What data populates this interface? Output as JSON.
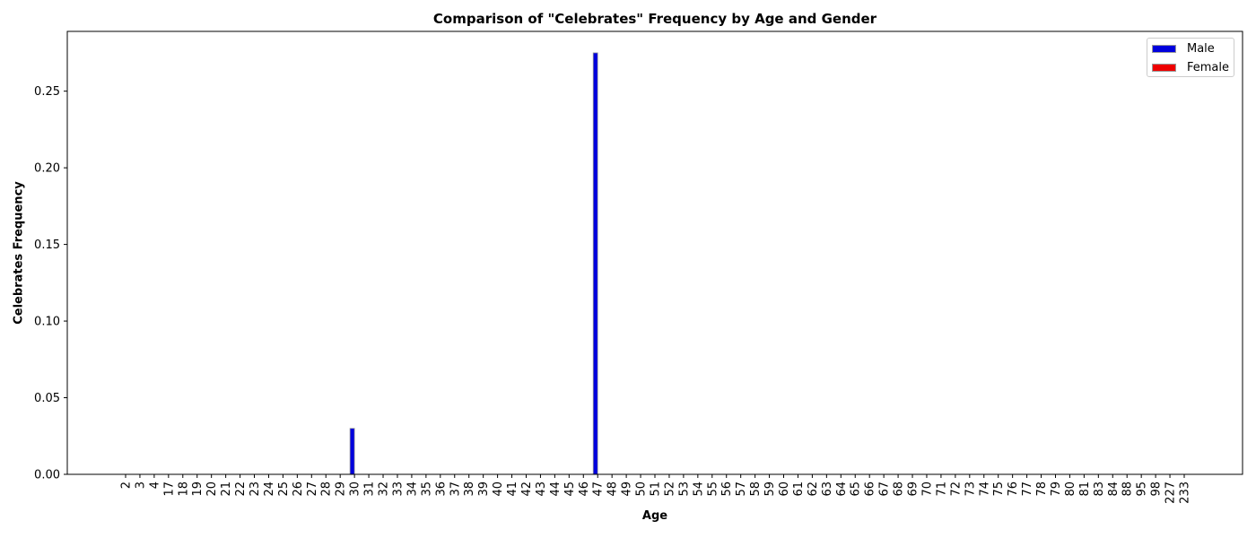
{
  "chart_data": {
    "type": "bar",
    "title": "Comparison of \"Celebrates\" Frequency by Age and Gender",
    "xlabel": "Age",
    "ylabel": "Celebrates Frequency",
    "ylim": [
      0,
      0.289
    ],
    "yticks": [
      0.0,
      0.05,
      0.1,
      0.15,
      0.2,
      0.25
    ],
    "ytick_labels": [
      "0.00",
      "0.05",
      "0.10",
      "0.15",
      "0.20",
      "0.25"
    ],
    "grid": false,
    "legend_position": "top-right",
    "categories": [
      "2",
      "3",
      "4",
      "17",
      "18",
      "19",
      "20",
      "21",
      "22",
      "23",
      "24",
      "25",
      "26",
      "27",
      "28",
      "29",
      "30",
      "31",
      "32",
      "33",
      "34",
      "35",
      "36",
      "37",
      "38",
      "39",
      "40",
      "41",
      "42",
      "43",
      "44",
      "45",
      "46",
      "47",
      "48",
      "49",
      "50",
      "51",
      "52",
      "53",
      "54",
      "55",
      "56",
      "57",
      "58",
      "59",
      "60",
      "61",
      "62",
      "63",
      "64",
      "65",
      "66",
      "67",
      "68",
      "69",
      "70",
      "71",
      "72",
      "73",
      "74",
      "75",
      "76",
      "77",
      "78",
      "79",
      "80",
      "81",
      "83",
      "84",
      "88",
      "95",
      "98",
      "227",
      "233"
    ],
    "series": [
      {
        "name": "Male",
        "color": "#0000dd",
        "values": [
          0,
          0,
          0,
          0,
          0,
          0,
          0,
          0,
          0,
          0,
          0,
          0,
          0,
          0,
          0,
          0,
          0.03,
          0,
          0,
          0,
          0,
          0,
          0,
          0,
          0,
          0,
          0,
          0,
          0,
          0,
          0,
          0,
          0,
          0.275,
          0,
          0,
          0,
          0,
          0,
          0,
          0,
          0,
          0,
          0,
          0,
          0,
          0,
          0,
          0,
          0,
          0,
          0,
          0,
          0,
          0,
          0,
          0,
          0,
          0,
          0,
          0,
          0,
          0,
          0,
          0,
          0,
          0,
          0,
          0,
          0,
          0,
          0,
          0,
          0,
          0
        ]
      },
      {
        "name": "Female",
        "color": "#ee0000",
        "values": [
          0,
          0,
          0,
          0,
          0,
          0,
          0,
          0,
          0,
          0,
          0,
          0,
          0,
          0,
          0,
          0,
          0,
          0,
          0,
          0,
          0,
          0,
          0,
          0,
          0,
          0,
          0,
          0,
          0,
          0,
          0,
          0,
          0,
          0,
          0,
          0,
          0,
          0,
          0,
          0,
          0,
          0,
          0,
          0,
          0,
          0,
          0,
          0,
          0,
          0,
          0,
          0,
          0,
          0,
          0,
          0,
          0,
          0,
          0,
          0,
          0,
          0,
          0,
          0,
          0,
          0,
          0,
          0,
          0,
          0,
          0,
          0,
          0,
          0,
          0
        ]
      }
    ]
  }
}
